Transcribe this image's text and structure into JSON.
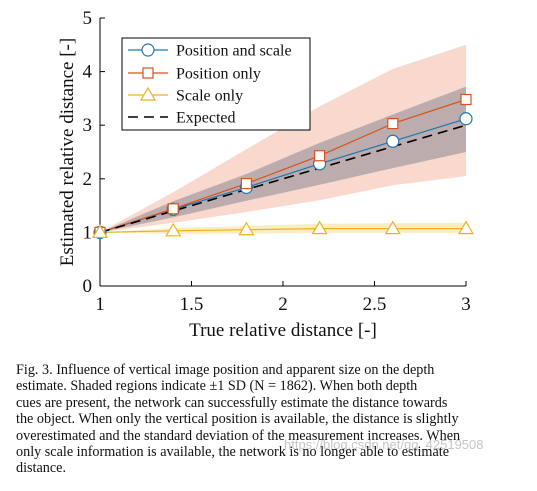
{
  "chart_data": {
    "type": "line",
    "xlabel": "True relative distance [-]",
    "ylabel": "Estimated relative distance [-]",
    "xlim": [
      1,
      3
    ],
    "ylim": [
      0,
      5
    ],
    "x_ticks": [
      "1",
      "1.5",
      "2",
      "2.5",
      "3"
    ],
    "y_ticks": [
      "0",
      "1",
      "2",
      "3",
      "4",
      "5"
    ],
    "x": [
      1,
      1.4,
      1.8,
      2.2,
      2.6,
      3
    ],
    "legend_position": "top-left",
    "series": [
      {
        "name": "Position and scale",
        "values": [
          1,
          1.43,
          1.84,
          2.28,
          2.7,
          3.12
        ],
        "band_lower": [
          1,
          1.28,
          1.59,
          1.89,
          2.2,
          2.5
        ],
        "band_upper": [
          1,
          1.58,
          2.09,
          2.67,
          3.2,
          3.72
        ],
        "color": "#1f77b4",
        "band_color": "#5a6478",
        "marker": "circle"
      },
      {
        "name": "Position only",
        "values": [
          1,
          1.44,
          1.91,
          2.43,
          3.03,
          3.48
        ],
        "band_lower": [
          1,
          1.18,
          1.38,
          1.6,
          1.88,
          2.05
        ],
        "band_upper": [
          1,
          1.75,
          2.55,
          3.35,
          4.05,
          4.5
        ],
        "color": "#d95319",
        "band_color": "#f4b8a5",
        "marker": "square"
      },
      {
        "name": "Scale only",
        "values": [
          1,
          1.03,
          1.05,
          1.07,
          1.07,
          1.07
        ],
        "band_lower": [
          1,
          0.97,
          0.98,
          0.99,
          0.99,
          0.99
        ],
        "band_upper": [
          1,
          1.08,
          1.12,
          1.16,
          1.17,
          1.18
        ],
        "color": "#edb120",
        "band_color": "#f8df9a",
        "marker": "triangle"
      },
      {
        "name": "Expected",
        "values": [
          1,
          1.4,
          1.8,
          2.2,
          2.6,
          3
        ],
        "color": "#000000",
        "dashed": true
      }
    ]
  },
  "caption": {
    "lines": [
      "Fig. 3.   Influence of vertical image position and apparent size on the depth",
      "estimate. Shaded regions indicate ±1 SD (N = 1862). When both depth",
      "cues are present, the network can successfully estimate the distance towards",
      "the object. When only the vertical position is available, the distance is slightly",
      "overestimated and the standard deviation of the measurement increases. When",
      "only scale information is available, the network is no longer able to estimate",
      "distance."
    ]
  },
  "watermark": "https://blog.csdn.net/qq_42519508"
}
